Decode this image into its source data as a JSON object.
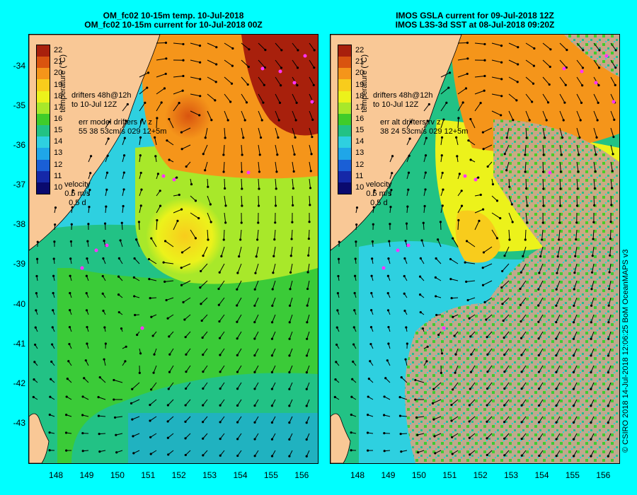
{
  "left_panel": {
    "title_line1": "OM_fc02 10-15m temp. 10-Jul-2018",
    "title_line2": "OM_fc02 10-15m current for 10-Jul-2018 00Z",
    "legend_drifters_1": "drifters 48h@12h",
    "legend_drifters_2": "to 10-Jul 12Z",
    "legend_err_1": "err model drifters rv z",
    "legend_err_2": "55 38 53cm/s 029 12+5m"
  },
  "right_panel": {
    "title_line1": "IMOS GSLA current for 09-Jul-2018 12Z",
    "title_line2": "IMOS L3S-3d SST at 08-Jul-2018 09:20Z",
    "legend_drifters_1": "drifters 48h@12h",
    "legend_drifters_2": "to 10-Jul 12Z",
    "legend_err_1": "err alt drifters rv z",
    "legend_err_2": "38 24 53cm/s 029 12+5m"
  },
  "velocity_legend": {
    "label": "velocity",
    "speed": "0.5 m/s",
    "duration": "0.5 d"
  },
  "colorbar": {
    "title": "temperature (°C)",
    "labels": [
      "22",
      "21",
      "20",
      "19",
      "18",
      "17",
      "16",
      "15",
      "14",
      "13",
      "12",
      "11",
      "10"
    ],
    "colors": [
      "#a8200c",
      "#d9540f",
      "#f5951a",
      "#f8cc1c",
      "#ecf21b",
      "#a8e82a",
      "#3fcc2a",
      "#22c285",
      "#2ed0e0",
      "#1fa6e8",
      "#1a5fd6",
      "#1528a8",
      "#0a0a6e"
    ]
  },
  "axes": {
    "lat_ticks": [
      "-34",
      "-35",
      "-36",
      "-37",
      "-38",
      "-39",
      "-40",
      "-41",
      "-42",
      "-43"
    ],
    "lon_ticks": [
      "148",
      "149",
      "150",
      "151",
      "152",
      "153",
      "154",
      "155",
      "156"
    ],
    "lon_range": [
      147.1,
      156.5
    ],
    "lat_range": [
      -33.2,
      -44.0
    ]
  },
  "credit": "© CSIRO 2018   14-Jul-2018 12:06:25 BoM OceanMAPS v3",
  "colors": {
    "background": "#00ffff",
    "land": "#f9c896",
    "cloud_mask": "#c8a68a",
    "drifter": "#ff33ff"
  }
}
